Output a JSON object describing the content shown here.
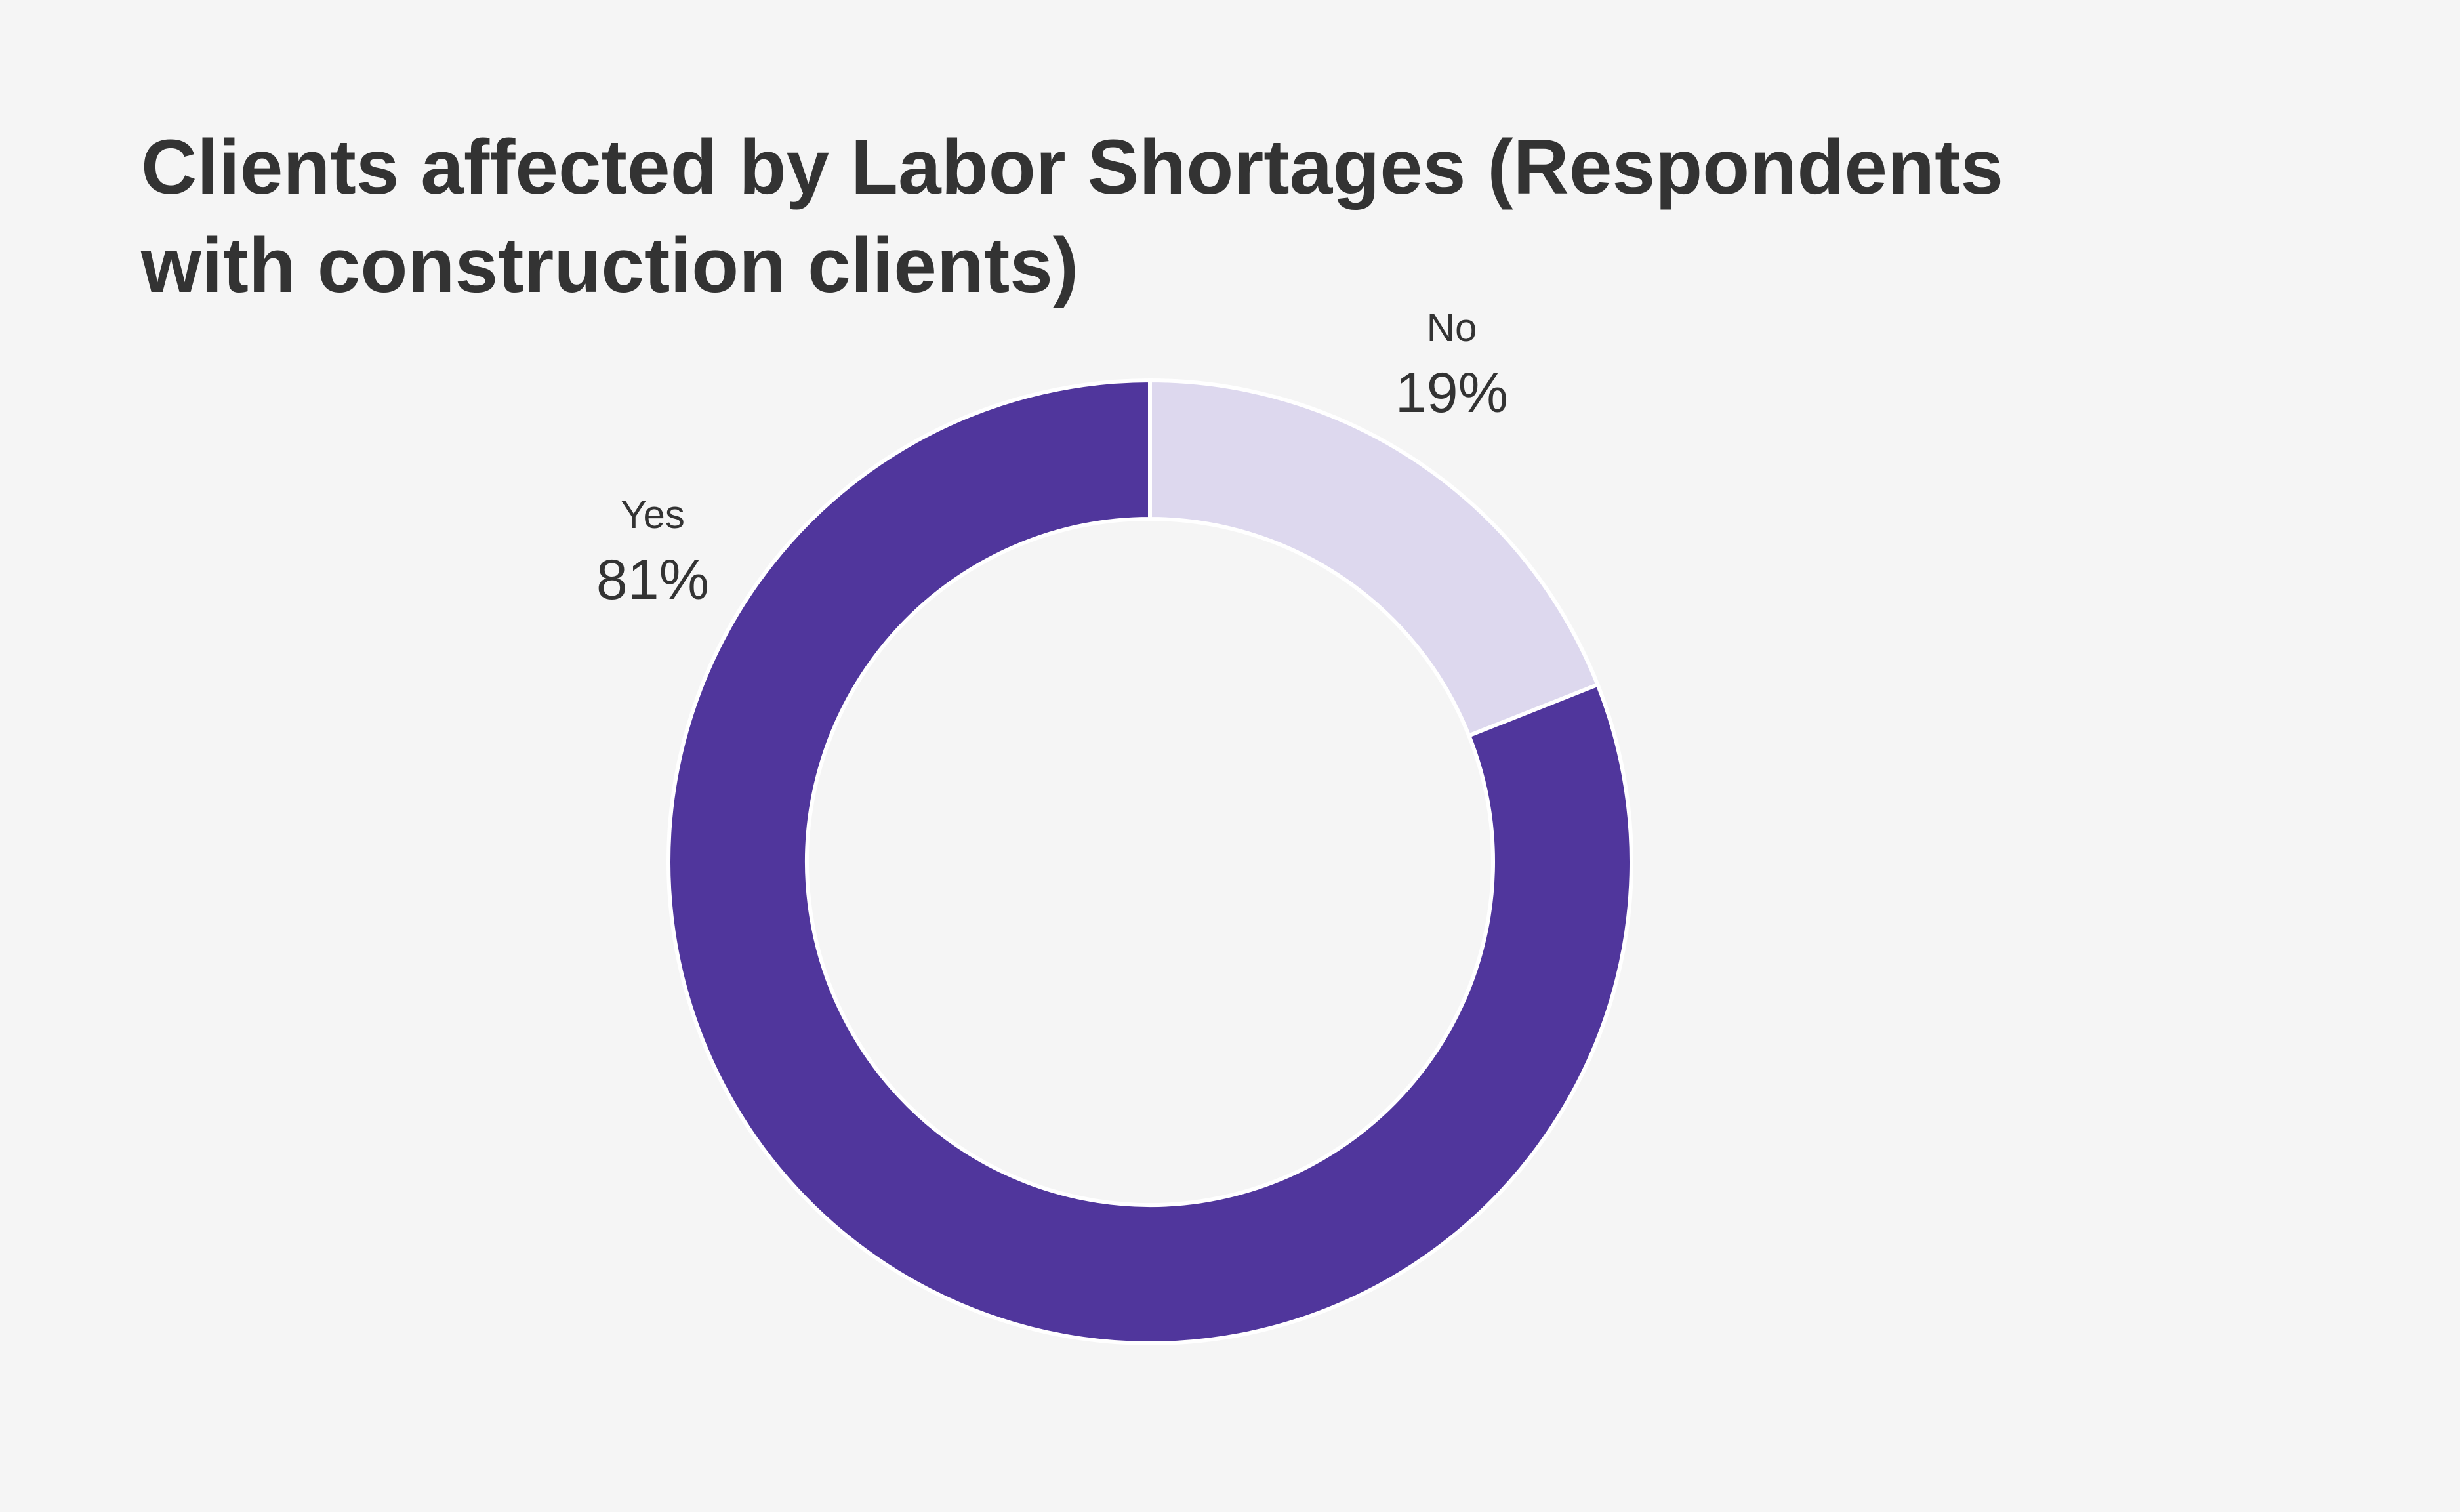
{
  "chart_data": {
    "type": "pie",
    "variant": "donut",
    "title": "Clients affected by Labor Shortages (Respondents with construction clients)",
    "categories": [
      "No",
      "Yes"
    ],
    "values": [
      19,
      81
    ],
    "value_labels": [
      "19%",
      "81%"
    ],
    "colors": [
      "#ddd8ee",
      "#50369c"
    ],
    "legend": "none"
  }
}
